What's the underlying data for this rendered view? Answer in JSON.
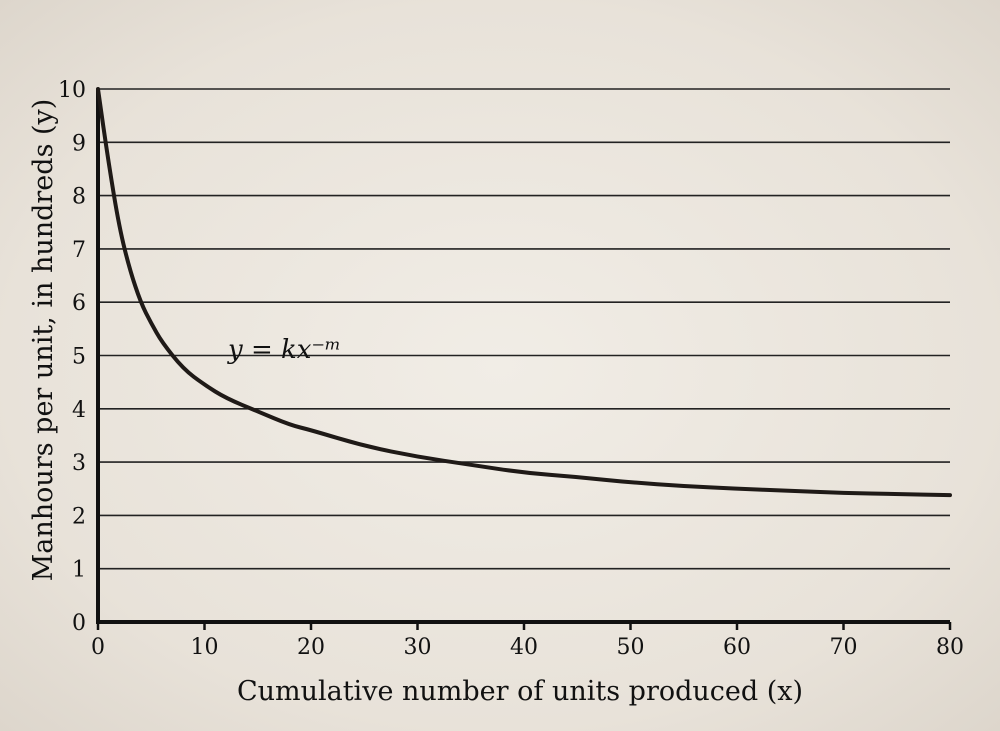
{
  "chart_data": {
    "type": "line",
    "title": "",
    "xlabel": "Cumulative number of units produced (x)",
    "ylabel": "Manhours per unit, in hundreds (y)",
    "xlim": [
      0,
      80
    ],
    "ylim": [
      0,
      10
    ],
    "x_ticks": [
      "0",
      "10",
      "20",
      "30",
      "40",
      "50",
      "60",
      "70",
      "80"
    ],
    "y_ticks": [
      "0",
      "1",
      "2",
      "3",
      "4",
      "5",
      "6",
      "7",
      "8",
      "9",
      "10"
    ],
    "grid": "horizontal",
    "annotation": "y = kx⁻ᵐ",
    "series": [
      {
        "x": [
          0,
          1,
          2,
          3,
          4,
          5,
          6,
          8,
          10,
          12,
          15,
          18,
          20,
          25,
          30,
          35,
          40,
          45,
          50,
          55,
          60,
          65,
          70,
          75,
          80
        ],
        "values": [
          10,
          8.6,
          7.4,
          6.6,
          6.0,
          5.6,
          5.25,
          4.75,
          4.45,
          4.2,
          3.95,
          3.7,
          3.6,
          3.3,
          3.1,
          2.95,
          2.8,
          2.72,
          2.62,
          2.55,
          2.5,
          2.46,
          2.42,
          2.4,
          2.38
        ]
      }
    ]
  },
  "colors": {
    "ink": "#1f1a17",
    "paper": "#ece7df"
  }
}
